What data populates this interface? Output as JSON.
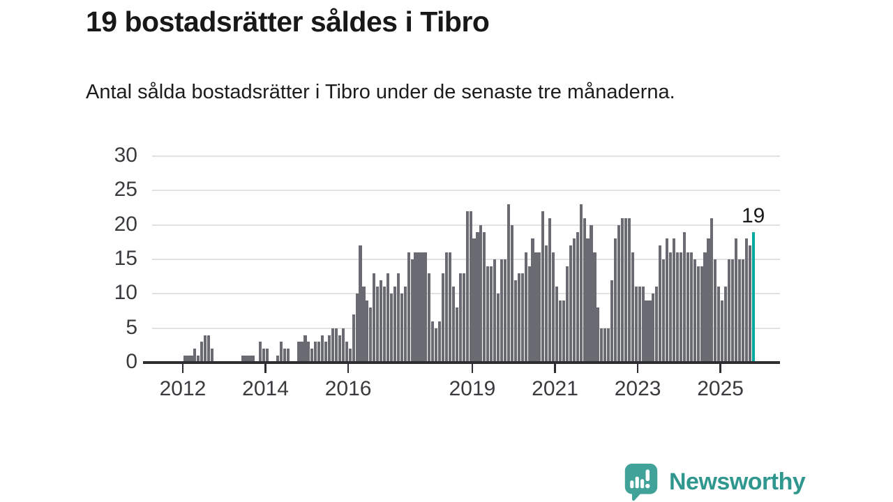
{
  "chart_data": {
    "type": "bar",
    "title": "19 bostadsrätter såldes i Tibro",
    "subtitle": "Antal sålda bostadsrätter i Tibro under de senaste tre månaderna.",
    "frequency": "monthly",
    "x_start": "2012-01",
    "x_end": "2025-10",
    "x_tick_labels": [
      "2012",
      "2014",
      "2016",
      "2019",
      "2021",
      "2023",
      "2025"
    ],
    "y_ticks": [
      0,
      5,
      10,
      15,
      20,
      25,
      30
    ],
    "ylim": [
      0,
      30
    ],
    "grid": "horizontal",
    "bar_color": "#6a6a72",
    "highlight_color": "#00a89e",
    "highlight": {
      "position": "last",
      "value": 19,
      "label": "19"
    },
    "series": [
      {
        "name": "Antal sålda bostadsrätter (rullande 3 månader)",
        "values": [
          1,
          1,
          1,
          2,
          1,
          3,
          4,
          4,
          2,
          0,
          0,
          0,
          0,
          0,
          0,
          0,
          0,
          1,
          1,
          1,
          1,
          0,
          3,
          2,
          2,
          0,
          0,
          1,
          3,
          2,
          2,
          0,
          0,
          3,
          3,
          4,
          3,
          2,
          3,
          3,
          4,
          3,
          4,
          5,
          5,
          4,
          5,
          3,
          2,
          7,
          10,
          17,
          11,
          9,
          8,
          13,
          11,
          12,
          11,
          13,
          10,
          11,
          13,
          10,
          11,
          16,
          15,
          16,
          16,
          16,
          16,
          13,
          6,
          5,
          6,
          13,
          16,
          16,
          11,
          8,
          13,
          13,
          22,
          22,
          18,
          19,
          20,
          19,
          14,
          14,
          15,
          10,
          15,
          15,
          23,
          20,
          12,
          13,
          13,
          16,
          14,
          18,
          16,
          16,
          22,
          17,
          21,
          16,
          11,
          9,
          9,
          14,
          17,
          18,
          19,
          23,
          21,
          18,
          20,
          16,
          8,
          5,
          5,
          5,
          12,
          18,
          20,
          21,
          21,
          21,
          16,
          11,
          11,
          11,
          9,
          9,
          10,
          11,
          17,
          15,
          18,
          16,
          18,
          16,
          16,
          19,
          16,
          16,
          15,
          14,
          14,
          16,
          18,
          21,
          15,
          11,
          9,
          11,
          15,
          15,
          18,
          15,
          15,
          18,
          17,
          19
        ]
      }
    ]
  },
  "footer": {
    "brand": "Newsworthy"
  }
}
